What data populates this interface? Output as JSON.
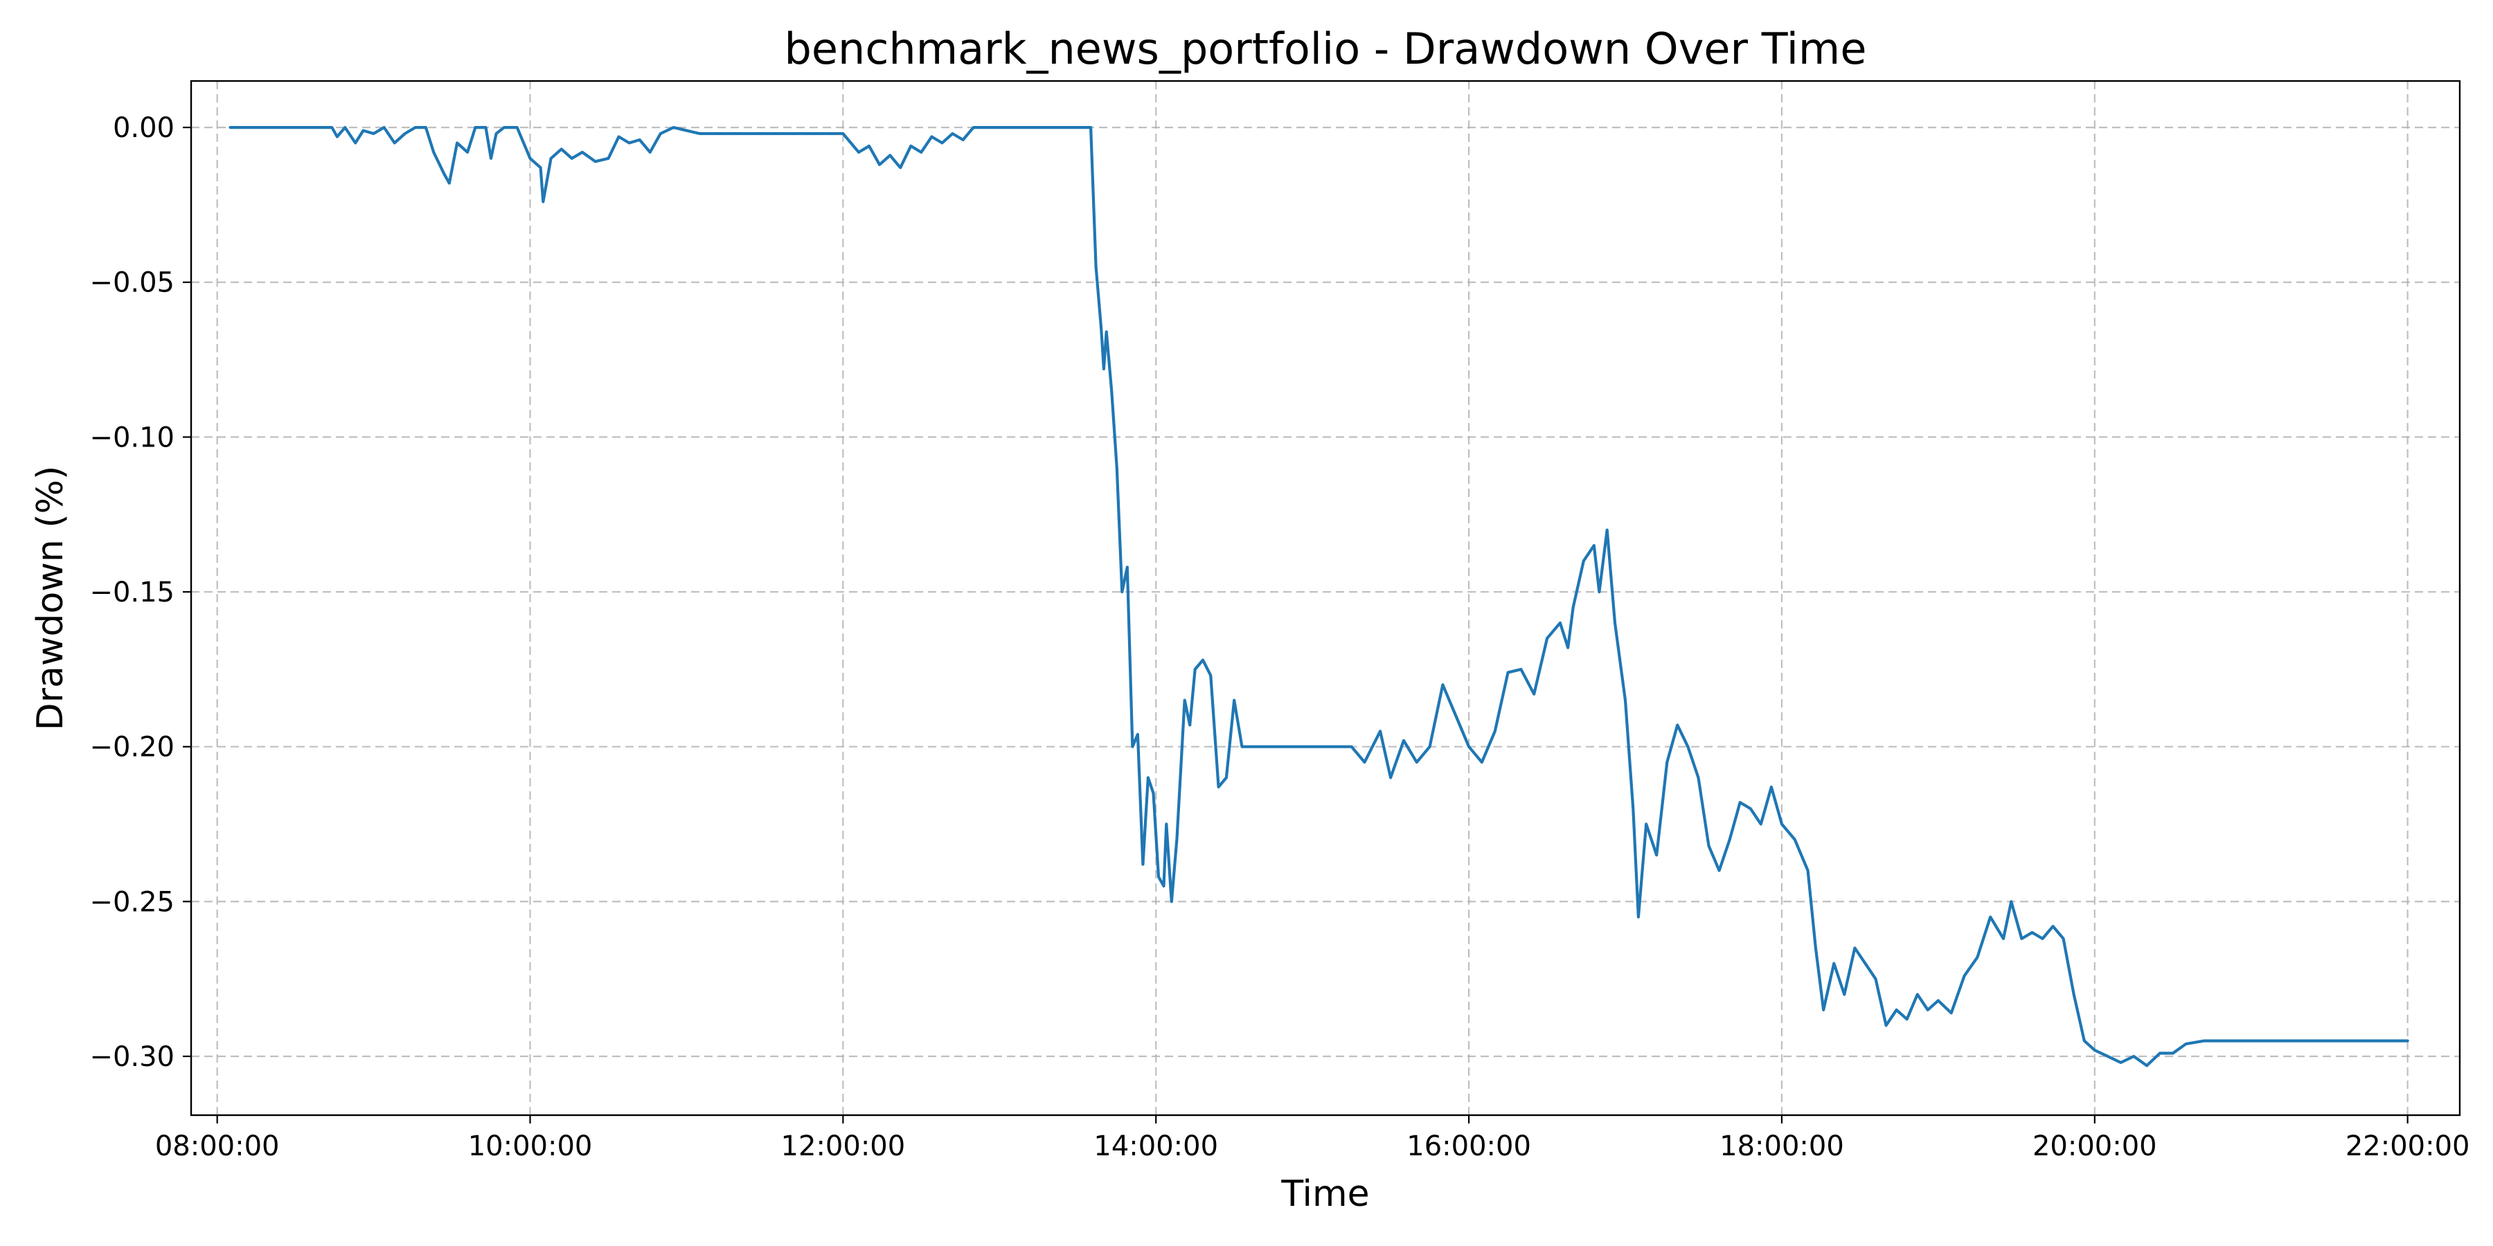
{
  "chart_data": {
    "type": "line",
    "title": "benchmark_news_portfolio - Drawdown Over Time",
    "xlabel": "Time",
    "ylabel": "Drawdown (%)",
    "xlim": [
      "07:50:00",
      "22:20:00"
    ],
    "ylim": [
      -0.319,
      0.015
    ],
    "x_ticks": [
      "08:00:00",
      "10:00:00",
      "12:00:00",
      "14:00:00",
      "16:00:00",
      "18:00:00",
      "20:00:00",
      "22:00:00"
    ],
    "y_ticks": [
      0.0,
      -0.05,
      -0.1,
      -0.15,
      -0.2,
      -0.25,
      -0.3
    ],
    "y_tick_labels": [
      "0.00",
      "−0.05",
      "−0.10",
      "−0.15",
      "−0.20",
      "−0.25",
      "−0.30"
    ],
    "grid": true,
    "grid_style": "dashed",
    "series": [
      {
        "color": "#1f77b4",
        "points": [
          [
            "08:05:00",
            0.0
          ],
          [
            "08:30:00",
            0.0
          ],
          [
            "08:44:00",
            0.0
          ],
          [
            "08:46:00",
            -0.003
          ],
          [
            "08:49:00",
            0.0
          ],
          [
            "08:53:00",
            -0.005
          ],
          [
            "08:56:00",
            -0.001
          ],
          [
            "09:00:00",
            -0.002
          ],
          [
            "09:04:00",
            0.0
          ],
          [
            "09:08:00",
            -0.005
          ],
          [
            "09:12:00",
            -0.002
          ],
          [
            "09:16:00",
            0.0
          ],
          [
            "09:20:00",
            0.0
          ],
          [
            "09:23:00",
            -0.008
          ],
          [
            "09:27:00",
            -0.015
          ],
          [
            "09:29:00",
            -0.018
          ],
          [
            "09:32:00",
            -0.005
          ],
          [
            "09:36:00",
            -0.008
          ],
          [
            "09:39:00",
            0.0
          ],
          [
            "09:43:00",
            0.0
          ],
          [
            "09:45:00",
            -0.01
          ],
          [
            "09:47:00",
            -0.002
          ],
          [
            "09:50:00",
            0.0
          ],
          [
            "09:55:00",
            0.0
          ],
          [
            "10:00:00",
            -0.01
          ],
          [
            "10:04:00",
            -0.013
          ],
          [
            "10:05:00",
            -0.024
          ],
          [
            "10:08:00",
            -0.01
          ],
          [
            "10:12:00",
            -0.007
          ],
          [
            "10:16:00",
            -0.01
          ],
          [
            "10:20:00",
            -0.008
          ],
          [
            "10:25:00",
            -0.011
          ],
          [
            "10:30:00",
            -0.01
          ],
          [
            "10:34:00",
            -0.003
          ],
          [
            "10:38:00",
            -0.005
          ],
          [
            "10:42:00",
            -0.004
          ],
          [
            "10:46:00",
            -0.008
          ],
          [
            "10:50:00",
            -0.002
          ],
          [
            "10:55:00",
            0.0
          ],
          [
            "11:00:00",
            -0.001
          ],
          [
            "11:05:00",
            -0.002
          ],
          [
            "11:30:00",
            -0.002
          ],
          [
            "12:00:00",
            -0.002
          ],
          [
            "12:02:00",
            -0.004
          ],
          [
            "12:06:00",
            -0.008
          ],
          [
            "12:10:00",
            -0.006
          ],
          [
            "12:14:00",
            -0.012
          ],
          [
            "12:18:00",
            -0.009
          ],
          [
            "12:22:00",
            -0.013
          ],
          [
            "12:26:00",
            -0.006
          ],
          [
            "12:30:00",
            -0.008
          ],
          [
            "12:34:00",
            -0.003
          ],
          [
            "12:38:00",
            -0.005
          ],
          [
            "12:42:00",
            -0.002
          ],
          [
            "12:46:00",
            -0.004
          ],
          [
            "12:50:00",
            0.0
          ],
          [
            "13:20:00",
            0.0
          ],
          [
            "13:35:00",
            0.0
          ],
          [
            "13:37:00",
            -0.045
          ],
          [
            "13:39:00",
            -0.065
          ],
          [
            "13:40:00",
            -0.078
          ],
          [
            "13:41:00",
            -0.066
          ],
          [
            "13:43:00",
            -0.085
          ],
          [
            "13:45:00",
            -0.11
          ],
          [
            "13:47:00",
            -0.15
          ],
          [
            "13:49:00",
            -0.142
          ],
          [
            "13:51:00",
            -0.2
          ],
          [
            "13:53:00",
            -0.196
          ],
          [
            "13:55:00",
            -0.238
          ],
          [
            "13:57:00",
            -0.21
          ],
          [
            "13:59:00",
            -0.215
          ],
          [
            "14:01:00",
            -0.242
          ],
          [
            "14:03:00",
            -0.245
          ],
          [
            "14:04:00",
            -0.225
          ],
          [
            "14:06:00",
            -0.25
          ],
          [
            "14:08:00",
            -0.23
          ],
          [
            "14:11:00",
            -0.185
          ],
          [
            "14:13:00",
            -0.193
          ],
          [
            "14:15:00",
            -0.175
          ],
          [
            "14:18:00",
            -0.172
          ],
          [
            "14:21:00",
            -0.177
          ],
          [
            "14:24:00",
            -0.213
          ],
          [
            "14:27:00",
            -0.21
          ],
          [
            "14:30:00",
            -0.185
          ],
          [
            "14:33:00",
            -0.2
          ],
          [
            "14:45:00",
            -0.2
          ],
          [
            "15:00:00",
            -0.2
          ],
          [
            "15:15:00",
            -0.2
          ],
          [
            "15:20:00",
            -0.205
          ],
          [
            "15:23:00",
            -0.2
          ],
          [
            "15:26:00",
            -0.195
          ],
          [
            "15:30:00",
            -0.21
          ],
          [
            "15:35:00",
            -0.198
          ],
          [
            "15:40:00",
            -0.205
          ],
          [
            "15:45:00",
            -0.2
          ],
          [
            "15:50:00",
            -0.18
          ],
          [
            "15:55:00",
            -0.19
          ],
          [
            "16:00:00",
            -0.2
          ],
          [
            "16:05:00",
            -0.205
          ],
          [
            "16:10:00",
            -0.195
          ],
          [
            "16:15:00",
            -0.176
          ],
          [
            "16:20:00",
            -0.175
          ],
          [
            "16:25:00",
            -0.183
          ],
          [
            "16:30:00",
            -0.165
          ],
          [
            "16:35:00",
            -0.16
          ],
          [
            "16:38:00",
            -0.168
          ],
          [
            "16:40:00",
            -0.155
          ],
          [
            "16:44:00",
            -0.14
          ],
          [
            "16:48:00",
            -0.135
          ],
          [
            "16:50:00",
            -0.15
          ],
          [
            "16:53:00",
            -0.13
          ],
          [
            "16:56:00",
            -0.16
          ],
          [
            "17:00:00",
            -0.185
          ],
          [
            "17:03:00",
            -0.22
          ],
          [
            "17:05:00",
            -0.255
          ],
          [
            "17:08:00",
            -0.225
          ],
          [
            "17:12:00",
            -0.235
          ],
          [
            "17:16:00",
            -0.205
          ],
          [
            "17:20:00",
            -0.193
          ],
          [
            "17:24:00",
            -0.2
          ],
          [
            "17:28:00",
            -0.21
          ],
          [
            "17:32:00",
            -0.232
          ],
          [
            "17:36:00",
            -0.24
          ],
          [
            "17:40:00",
            -0.23
          ],
          [
            "17:44:00",
            -0.218
          ],
          [
            "17:48:00",
            -0.22
          ],
          [
            "17:52:00",
            -0.225
          ],
          [
            "17:56:00",
            -0.213
          ],
          [
            "18:00:00",
            -0.225
          ],
          [
            "18:05:00",
            -0.23
          ],
          [
            "18:10:00",
            -0.24
          ],
          [
            "18:13:00",
            -0.265
          ],
          [
            "18:16:00",
            -0.285
          ],
          [
            "18:20:00",
            -0.27
          ],
          [
            "18:24:00",
            -0.28
          ],
          [
            "18:28:00",
            -0.265
          ],
          [
            "18:32:00",
            -0.27
          ],
          [
            "18:36:00",
            -0.275
          ],
          [
            "18:40:00",
            -0.29
          ],
          [
            "18:44:00",
            -0.285
          ],
          [
            "18:48:00",
            -0.288
          ],
          [
            "18:52:00",
            -0.28
          ],
          [
            "18:56:00",
            -0.285
          ],
          [
            "19:00:00",
            -0.282
          ],
          [
            "19:05:00",
            -0.286
          ],
          [
            "19:10:00",
            -0.274
          ],
          [
            "19:15:00",
            -0.268
          ],
          [
            "19:20:00",
            -0.255
          ],
          [
            "19:25:00",
            -0.262
          ],
          [
            "19:28:00",
            -0.25
          ],
          [
            "19:32:00",
            -0.262
          ],
          [
            "19:36:00",
            -0.26
          ],
          [
            "19:40:00",
            -0.262
          ],
          [
            "19:44:00",
            -0.258
          ],
          [
            "19:48:00",
            -0.262
          ],
          [
            "19:52:00",
            -0.28
          ],
          [
            "19:56:00",
            -0.295
          ],
          [
            "20:00:00",
            -0.298
          ],
          [
            "20:05:00",
            -0.3
          ],
          [
            "20:10:00",
            -0.302
          ],
          [
            "20:15:00",
            -0.3
          ],
          [
            "20:20:00",
            -0.303
          ],
          [
            "20:25:00",
            -0.299
          ],
          [
            "20:30:00",
            -0.299
          ],
          [
            "20:35:00",
            -0.296
          ],
          [
            "20:42:00",
            -0.295
          ],
          [
            "21:00:00",
            -0.295
          ],
          [
            "21:30:00",
            -0.295
          ],
          [
            "22:00:00",
            -0.295
          ]
        ]
      }
    ]
  }
}
